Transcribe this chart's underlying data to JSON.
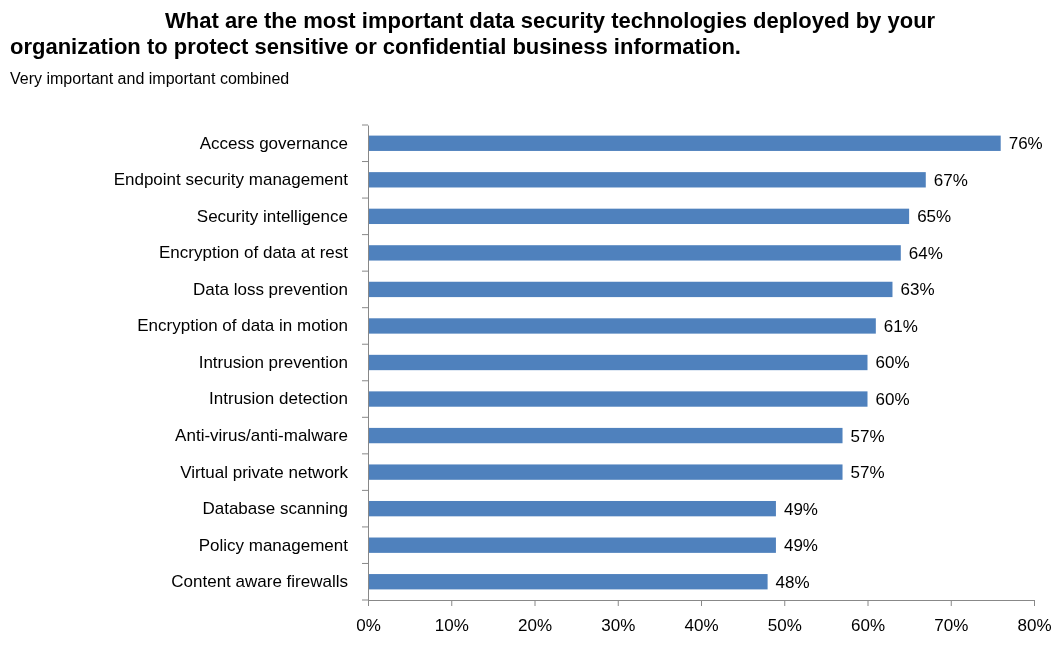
{
  "chart_data": {
    "type": "bar",
    "orientation": "horizontal",
    "title": "What are the most important data security technologies deployed by your organization to protect sensitive or confidential business information.",
    "subtitle": "Very important and important combined",
    "categories": [
      "Access governance",
      "Endpoint security management",
      "Security intelligence",
      "Encryption of data at rest",
      "Data loss prevention",
      "Encryption of data in motion",
      "Intrusion prevention",
      "Intrusion detection",
      "Anti-virus/anti-malware",
      "Virtual private network",
      "Database scanning",
      "Policy management",
      "Content aware firewalls"
    ],
    "values": [
      76,
      67,
      65,
      64,
      63,
      61,
      60,
      60,
      57,
      57,
      49,
      49,
      48
    ],
    "value_labels": [
      "76%",
      "67%",
      "65%",
      "64%",
      "63%",
      "61%",
      "60%",
      "60%",
      "57%",
      "57%",
      "49%",
      "49%",
      "48%"
    ],
    "color": "#4f81bd",
    "xlim": [
      0,
      80
    ],
    "xticks": [
      {
        "value": 0,
        "label": "0%"
      },
      {
        "value": 10,
        "label": "10%"
      },
      {
        "value": 20,
        "label": "20%"
      },
      {
        "value": 30,
        "label": "30%"
      },
      {
        "value": 40,
        "label": "40%"
      },
      {
        "value": 50,
        "label": "50%"
      },
      {
        "value": 60,
        "label": "60%"
      },
      {
        "value": 70,
        "label": "70%"
      },
      {
        "value": 80,
        "label": "80%"
      }
    ],
    "grid": false
  }
}
